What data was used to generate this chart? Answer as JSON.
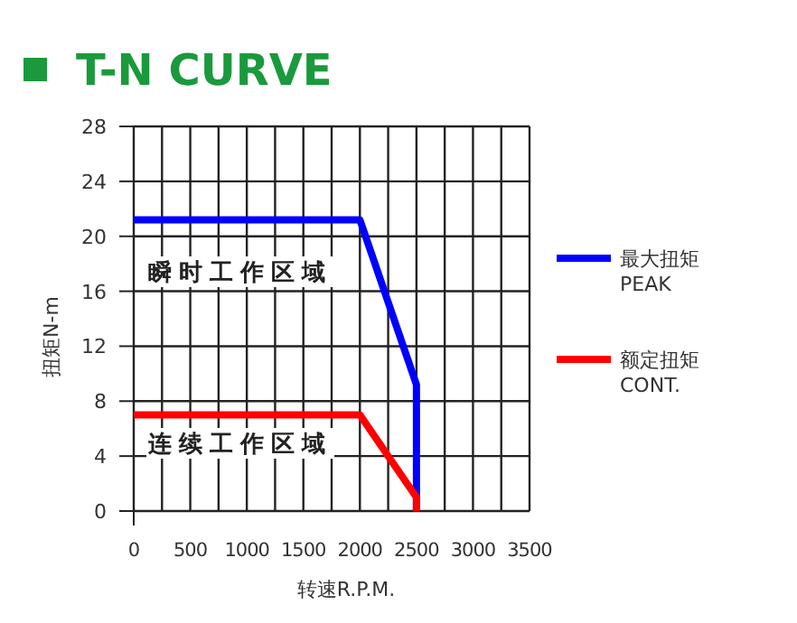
{
  "chart_data": {
    "type": "line",
    "title": "T-N CURVE",
    "xlabel": "转速R.P.M.",
    "ylabel": "扭矩N-m",
    "xlim": [
      0,
      3500
    ],
    "xticks": [
      0,
      {
        "value": 250,
        "label": null
      },
      500,
      {
        "value": 750,
        "label": null
      },
      1000,
      {
        "value": 1250,
        "label": null
      },
      1500,
      {
        "value": 1750,
        "label": null
      },
      2000,
      {
        "value": 2250,
        "label": null
      },
      2500,
      {
        "value": 2750,
        "label": null
      },
      3000,
      {
        "value": 3250,
        "label": null
      },
      3500
    ],
    "ylim": [
      0,
      28
    ],
    "yticks": [
      0,
      4,
      8,
      12,
      16,
      20,
      24,
      28
    ],
    "grid": true,
    "legend": "right",
    "marker": "none",
    "line_style": "solid",
    "series": [
      {
        "name": "最大扭矩\nPEAK",
        "color": "#0000ff",
        "x": [
          0,
          2000,
          2500,
          2500
        ],
        "values": [
          21.2,
          21.2,
          9.2,
          0
        ]
      },
      {
        "name": "额定扭矩\nCONT.",
        "color": "#ff0000",
        "x": [
          0,
          2000,
          2500,
          2500
        ],
        "values": [
          7,
          7,
          1,
          0
        ]
      }
    ],
    "annotations": [
      "瞬时工作区域",
      "连续工作区域"
    ]
  }
}
